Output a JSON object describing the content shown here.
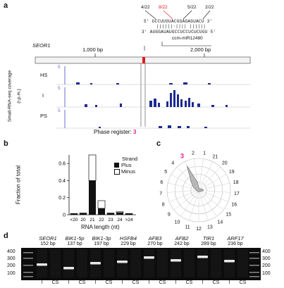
{
  "colors": {
    "accent": "#e0218a",
    "track_fill": "#1b2b8f",
    "highlight": "#e41a1c"
  },
  "panel_a": {
    "label": "a",
    "ratios": [
      "4/22",
      "8/22",
      "5/22",
      "2/22"
    ],
    "seq_top": "5′ UCCUUGUACGGAGAGUACU 3′",
    "pair_lines": "||||||·|||| ||||||",
    "seq_bottom": "3′ AUGGAUAUGCCUCCUCUCUGU 5′",
    "mirna_label": "ccm-miR12480",
    "gene_label": "SEOR1",
    "ticks": [
      "1,000 bp",
      "2,000 bp"
    ],
    "tracks": [
      "HS",
      "I",
      "PS"
    ],
    "scale_val": "5",
    "ylabel_1": "Small-RNA-seq coverage",
    "ylabel_2": "(r.p.m.)",
    "phase_label": "Phase register: ",
    "phase_value": "3"
  },
  "panel_b": {
    "label": "b",
    "ylabel": "Fraction of total",
    "xlabel": "RNA length (nt)",
    "legend_title": "Strand",
    "legend_plus": "Plus",
    "legend_minus": "Minus"
  },
  "panel_c": {
    "label": "c",
    "numbers": [
      "3",
      "2",
      "1",
      "21",
      "20",
      "19",
      "18",
      "17",
      "16",
      "15",
      "14",
      "13",
      "12",
      "11",
      "10",
      "9",
      "8",
      "7",
      "6",
      "5",
      "4"
    ]
  },
  "panel_d": {
    "label": "d",
    "genes": [
      {
        "name": "SEOR1",
        "size": "152 bp"
      },
      {
        "name": "BIK1-5p",
        "size": "137 bp"
      },
      {
        "name": "BIK1-3p",
        "size": "197 bp"
      },
      {
        "name": "HSFB4",
        "size": "229 bp"
      },
      {
        "name": "AFB3",
        "size": "270 bp"
      },
      {
        "name": "AFB2",
        "size": "242 bp"
      },
      {
        "name": "TIR1",
        "size": "289 bp"
      },
      {
        "name": "ARF17",
        "size": "236 bp"
      }
    ],
    "ladder_left": [
      "400",
      "300",
      "200",
      "100"
    ],
    "ladder_right": [
      "400",
      "300",
      "200",
      "100"
    ],
    "lanes": [
      "I",
      "CS",
      "I",
      "CS",
      "I",
      "CS",
      "I",
      "CS",
      "I",
      "CS",
      "I",
      "CS",
      "I",
      "CS",
      "I",
      "CS"
    ]
  },
  "chart_data": [
    {
      "type": "bar",
      "categories": [
        "<20",
        "20",
        "21",
        "22",
        "23",
        "24",
        ">24"
      ],
      "series": [
        {
          "name": "Plus",
          "values": [
            0.01,
            0.015,
            0.4,
            0.075,
            0.015,
            0.025,
            0.01
          ]
        },
        {
          "name": "Minus",
          "values": [
            0.005,
            0.005,
            0.3,
            0.09,
            0.005,
            0.01,
            0.005
          ]
        }
      ],
      "stacked": true,
      "yticks": [
        "0",
        "0.2",
        "0.4",
        "0.6"
      ],
      "ylim": [
        0,
        0.7
      ],
      "ylabel": "Fraction of total",
      "xlabel": "RNA length (nt)",
      "legend": "top-right"
    },
    {
      "type": "radar",
      "categories": [
        "1",
        "2",
        "3",
        "4",
        "5",
        "6",
        "7",
        "8",
        "9",
        "10",
        "11",
        "12",
        "13",
        "14",
        "15",
        "16",
        "17",
        "18",
        "19",
        "20",
        "21"
      ],
      "values": [
        0.05,
        0.25,
        0.85,
        0.35,
        0.2,
        0.1,
        0.08,
        0.05,
        0.05,
        0.05,
        0.05,
        0.05,
        0.05,
        0.05,
        0.05,
        0.1,
        0.15,
        0.12,
        0.08,
        0.05,
        0.05
      ],
      "highlight": "3"
    }
  ]
}
